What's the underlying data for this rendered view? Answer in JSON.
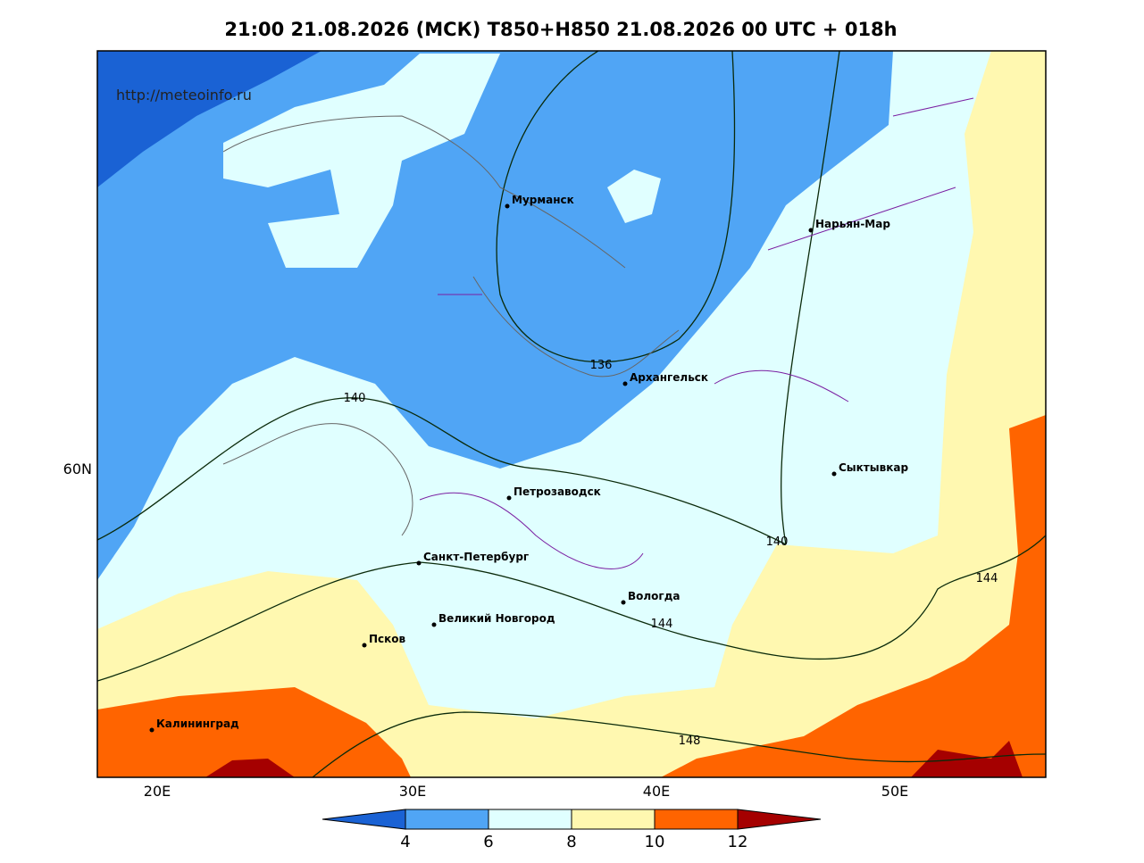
{
  "header": {
    "title": "21:00 21.08.2026 (МСК) T850+H850 21.08.2026 00 UTC + 018h"
  },
  "watermark": "http://meteoinfo.ru",
  "axes": {
    "x_labels": [
      "20E",
      "30E",
      "40E",
      "50E"
    ],
    "y_labels": [
      "60N"
    ]
  },
  "cities": [
    "Мурманск",
    "Нарьян-Мар",
    "Архангельск",
    "Сыктывкар",
    "Петрозаводск",
    "Санкт-Петербург",
    "Вологда",
    "Великий Новгород",
    "Псков",
    "Калининград"
  ],
  "contour_labels": [
    136,
    140,
    140,
    144,
    144,
    148
  ],
  "colorbar": {
    "ticks": [
      4,
      6,
      8,
      10,
      12
    ],
    "colors": [
      "#1a62d4",
      "#50a5f5",
      "#e0ffff",
      "#fff8b0",
      "#ff6400",
      "#a50000"
    ]
  }
}
